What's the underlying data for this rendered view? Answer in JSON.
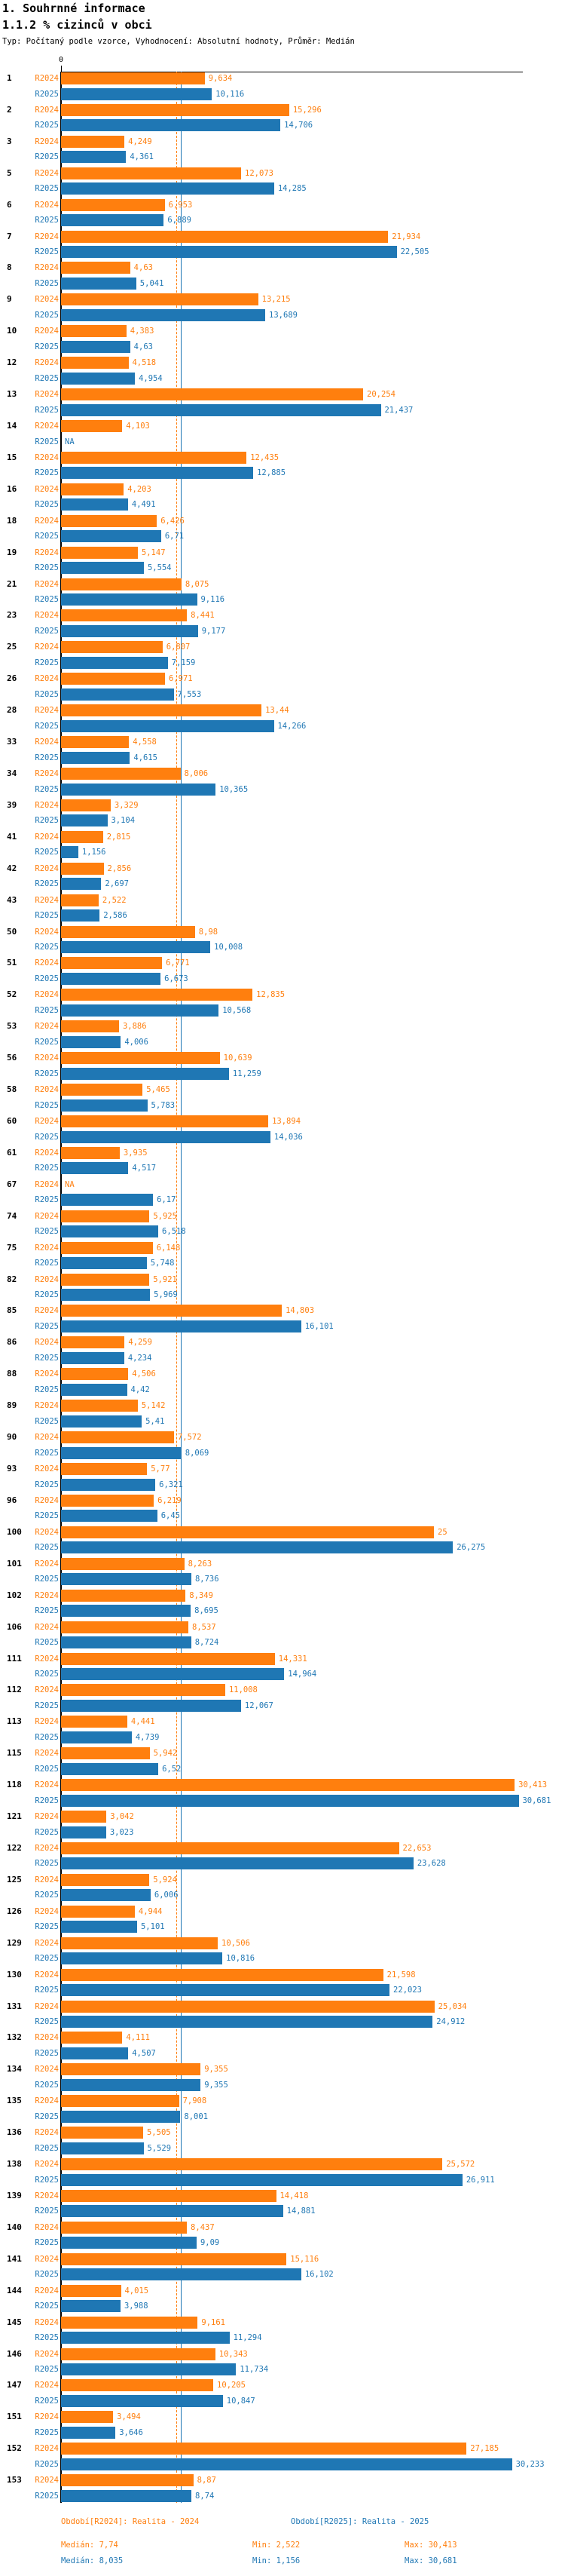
{
  "header": {
    "title": "1. Souhrnné informace",
    "subtitle": "1.1.2 % cizinců v obci",
    "meta": "Typ: Počítaný podle vzorce, Vyhodnocení: Absolutní hodnoty, Průměr: Medián"
  },
  "axis": {
    "zero_label": "0"
  },
  "colors": {
    "r2024": "#ff7f0e",
    "r2025": "#1f77b4",
    "axis": "#000000"
  },
  "reference_lines": {
    "median_2024": 7.74,
    "median_2025": 8.035
  },
  "legend": {
    "period_2024": "Období[R2024]: Realita - 2024",
    "period_2025": "Období[R2025]: Realita - 2025",
    "stats_2024": {
      "median": "Medián: 7,74",
      "min": "Min: 2,522",
      "max": "Max: 30,413"
    },
    "stats_2025": {
      "median": "Medián: 8,035",
      "min": "Min: 1,156",
      "max": "Max: 30,681"
    }
  },
  "chart_data": {
    "type": "bar",
    "orientation": "horizontal",
    "xlabel": "",
    "ylabel": "",
    "xlim": [
      0,
      31
    ],
    "grid": false,
    "legend_position": "bottom",
    "categories": [
      "1",
      "2",
      "3",
      "5",
      "6",
      "7",
      "8",
      "9",
      "10",
      "12",
      "13",
      "14",
      "15",
      "16",
      "18",
      "19",
      "21",
      "23",
      "25",
      "26",
      "28",
      "33",
      "34",
      "39",
      "41",
      "42",
      "43",
      "50",
      "51",
      "52",
      "53",
      "56",
      "58",
      "60",
      "61",
      "67",
      "74",
      "75",
      "82",
      "85",
      "86",
      "88",
      "89",
      "90",
      "93",
      "96",
      "100",
      "101",
      "102",
      "106",
      "111",
      "112",
      "113",
      "115",
      "118",
      "121",
      "122",
      "125",
      "126",
      "129",
      "130",
      "131",
      "132",
      "134",
      "135",
      "136",
      "138",
      "139",
      "140",
      "141",
      "144",
      "145",
      "146",
      "147",
      "151",
      "152",
      "153"
    ],
    "series": [
      {
        "name": "R2024",
        "values": [
          9.634,
          15.296,
          4.249,
          12.073,
          6.953,
          21.934,
          4.63,
          13.215,
          4.383,
          4.518,
          20.254,
          4.103,
          12.435,
          4.203,
          6.426,
          5.147,
          8.075,
          8.441,
          6.807,
          6.971,
          13.44,
          4.558,
          8.006,
          3.329,
          2.815,
          2.856,
          2.522,
          8.98,
          6.771,
          12.835,
          3.886,
          10.639,
          5.465,
          13.894,
          3.935,
          null,
          5.925,
          6.148,
          5.921,
          14.803,
          4.259,
          4.506,
          5.142,
          7.572,
          5.77,
          6.219,
          25,
          8.263,
          8.349,
          8.537,
          14.331,
          11.008,
          4.441,
          5.942,
          30.413,
          3.042,
          22.653,
          5.924,
          4.944,
          10.506,
          21.598,
          25.034,
          4.111,
          9.355,
          7.908,
          5.505,
          25.572,
          14.418,
          8.437,
          15.116,
          4.015,
          9.161,
          10.343,
          10.205,
          3.494,
          27.185,
          8.87
        ],
        "labels": [
          "9,634",
          "15,296",
          "4,249",
          "12,073",
          "6,953",
          "21,934",
          "4,63",
          "13,215",
          "4,383",
          "4,518",
          "20,254",
          "4,103",
          "12,435",
          "4,203",
          "6,426",
          "5,147",
          "8,075",
          "8,441",
          "6,807",
          "6,971",
          "13,44",
          "4,558",
          "8,006",
          "3,329",
          "2,815",
          "2,856",
          "2,522",
          "8,98",
          "6,771",
          "12,835",
          "3,886",
          "10,639",
          "5,465",
          "13,894",
          "3,935",
          "NA",
          "5,925",
          "6,148",
          "5,921",
          "14,803",
          "4,259",
          "4,506",
          "5,142",
          "7,572",
          "5,77",
          "6,219",
          "25",
          "8,263",
          "8,349",
          "8,537",
          "14,331",
          "11,008",
          "4,441",
          "5,942",
          "30,413",
          "3,042",
          "22,653",
          "5,924",
          "4,944",
          "10,506",
          "21,598",
          "25,034",
          "4,111",
          "9,355",
          "7,908",
          "5,505",
          "25,572",
          "14,418",
          "8,437",
          "15,116",
          "4,015",
          "9,161",
          "10,343",
          "10,205",
          "3,494",
          "27,185",
          "8,87"
        ]
      },
      {
        "name": "R2025",
        "values": [
          10.116,
          14.706,
          4.361,
          14.285,
          6.889,
          22.505,
          5.041,
          13.689,
          4.63,
          4.954,
          21.437,
          null,
          12.885,
          4.491,
          6.71,
          5.554,
          9.116,
          9.177,
          7.159,
          7.553,
          14.266,
          4.615,
          10.365,
          3.104,
          1.156,
          2.697,
          2.586,
          10.008,
          6.673,
          10.568,
          4.006,
          11.259,
          5.783,
          14.036,
          4.517,
          6.17,
          6.518,
          5.748,
          5.969,
          16.101,
          4.234,
          4.42,
          5.41,
          8.069,
          6.321,
          6.45,
          26.275,
          8.736,
          8.695,
          8.724,
          14.964,
          12.067,
          4.739,
          6.52,
          30.681,
          3.023,
          23.628,
          6.006,
          5.101,
          10.816,
          22.023,
          24.912,
          4.507,
          9.355,
          8.001,
          5.529,
          26.911,
          14.881,
          9.09,
          16.102,
          3.988,
          11.294,
          11.734,
          10.847,
          3.646,
          30.233,
          8.74
        ],
        "labels": [
          "10,116",
          "14,706",
          "4,361",
          "14,285",
          "6,889",
          "22,505",
          "5,041",
          "13,689",
          "4,63",
          "4,954",
          "21,437",
          "NA",
          "12,885",
          "4,491",
          "6,71",
          "5,554",
          "9,116",
          "9,177",
          "7,159",
          "7,553",
          "14,266",
          "4,615",
          "10,365",
          "3,104",
          "1,156",
          "2,697",
          "2,586",
          "10,008",
          "6,673",
          "10,568",
          "4,006",
          "11,259",
          "5,783",
          "14,036",
          "4,517",
          "6,17",
          "6,518",
          "5,748",
          "5,969",
          "16,101",
          "4,234",
          "4,42",
          "5,41",
          "8,069",
          "6,321",
          "6,45",
          "26,275",
          "8,736",
          "8,695",
          "8,724",
          "14,964",
          "12,067",
          "4,739",
          "6,52",
          "30,681",
          "3,023",
          "23,628",
          "6,006",
          "5,101",
          "10,816",
          "22,023",
          "24,912",
          "4,507",
          "9,355",
          "8,001",
          "5,529",
          "26,911",
          "14,881",
          "9,09",
          "16,102",
          "3,988",
          "11,294",
          "11,734",
          "10,847",
          "3,646",
          "30,233",
          "8,74"
        ]
      }
    ]
  }
}
